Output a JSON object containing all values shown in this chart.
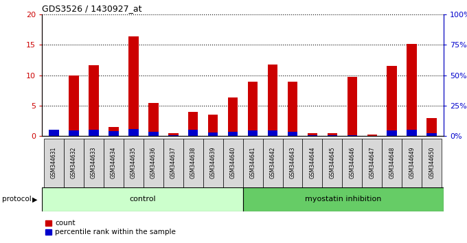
{
  "title": "GDS3526 / 1430927_at",
  "samples": [
    "GSM344631",
    "GSM344632",
    "GSM344633",
    "GSM344634",
    "GSM344635",
    "GSM344636",
    "GSM344637",
    "GSM344638",
    "GSM344639",
    "GSM344640",
    "GSM344641",
    "GSM344642",
    "GSM344643",
    "GSM344644",
    "GSM344645",
    "GSM344646",
    "GSM344647",
    "GSM344648",
    "GSM344649",
    "GSM344650"
  ],
  "count": [
    0.5,
    10.0,
    11.7,
    1.5,
    16.4,
    5.4,
    0.5,
    4.0,
    3.5,
    6.4,
    9.0,
    11.8,
    9.0,
    0.5,
    0.5,
    9.8,
    0.3,
    11.5,
    15.2,
    3.0
  ],
  "percentile": [
    1.0,
    0.96,
    1.0,
    0.84,
    1.18,
    0.7,
    0.18,
    1.0,
    0.62,
    0.66,
    0.9,
    0.9,
    0.76,
    0.18,
    0.14,
    0.1,
    0.06,
    0.96,
    1.1,
    0.44
  ],
  "n_control": 10,
  "n_myostatin": 10,
  "ylim_left": [
    0,
    20
  ],
  "ylim_right": [
    0,
    100
  ],
  "left_ticks": [
    0,
    5,
    10,
    15,
    20
  ],
  "right_ticks": [
    0,
    25,
    50,
    75,
    100
  ],
  "count_color": "#cc0000",
  "percentile_color": "#0000cc",
  "control_color": "#ccffcc",
  "myostatin_color": "#66cc66",
  "plot_bg": "#ffffff",
  "xtick_bg": "#d8d8d8",
  "protocol_label": "protocol",
  "control_label": "control",
  "myostatin_label": "myostatin inhibition",
  "legend_count": "count",
  "legend_percentile": "percentile rank within the sample"
}
